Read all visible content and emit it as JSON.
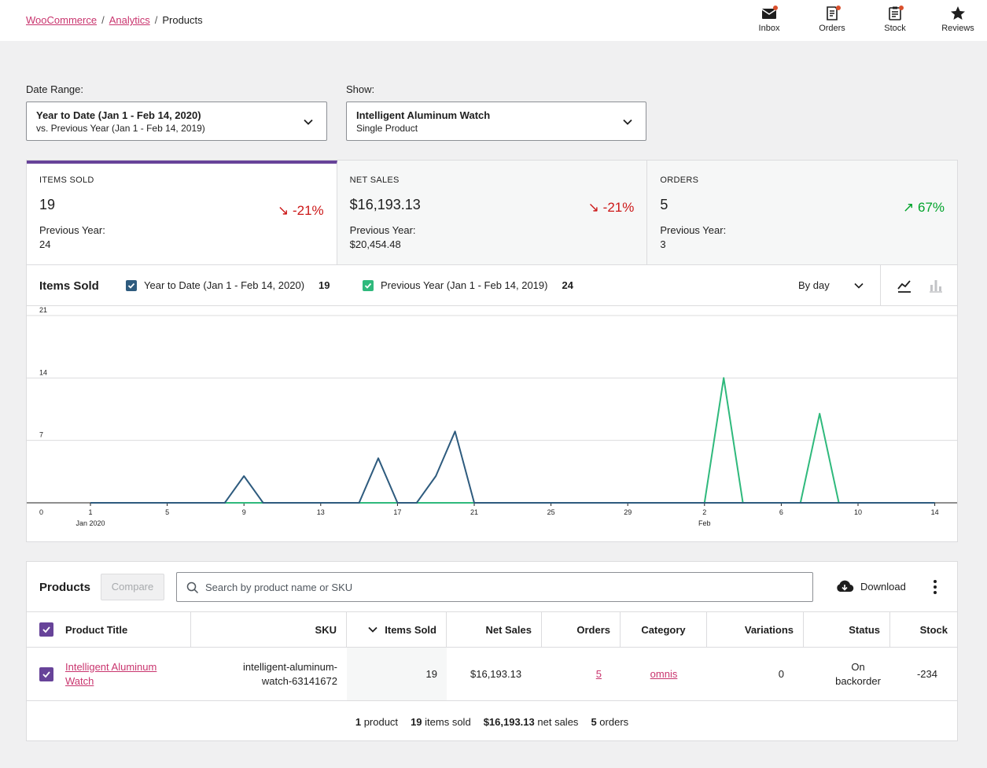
{
  "breadcrumb": {
    "items": [
      "WooCommerce",
      "Analytics"
    ],
    "current": "Products"
  },
  "activity": [
    {
      "label": "Inbox",
      "icon": "inbox-icon",
      "unread": true
    },
    {
      "label": "Orders",
      "icon": "orders-icon",
      "unread": true
    },
    {
      "label": "Stock",
      "icon": "stock-icon",
      "unread": true
    },
    {
      "label": "Reviews",
      "icon": "star-icon",
      "unread": false
    }
  ],
  "filters": {
    "date_range": {
      "label": "Date Range:",
      "primary": "Year to Date (Jan 1 - Feb 14, 2020)",
      "secondary": "vs. Previous Year (Jan 1 - Feb 14, 2019)"
    },
    "show": {
      "label": "Show:",
      "primary": "Intelligent Aluminum Watch",
      "secondary": "Single Product"
    }
  },
  "summary": [
    {
      "label": "ITEMS SOLD",
      "value": "19",
      "delta": "-21%",
      "direction": "down",
      "prev_label": "Previous Year:",
      "prev_value": "24"
    },
    {
      "label": "NET SALES",
      "value": "$16,193.13",
      "delta": "-21%",
      "direction": "down",
      "prev_label": "Previous Year:",
      "prev_value": "$20,454.48"
    },
    {
      "label": "ORDERS",
      "value": "5",
      "delta": "67%",
      "direction": "up",
      "prev_label": "Previous Year:",
      "prev_value": "3"
    }
  ],
  "chart": {
    "title": "Items Sold",
    "legend": [
      {
        "label": "Year to Date (Jan 1 - Feb 14, 2020)",
        "total": "19",
        "color": "#2e5b7e"
      },
      {
        "label": "Previous Year (Jan 1 - Feb 14, 2019)",
        "total": "24",
        "color": "#2fb97c"
      }
    ],
    "interval": "By day"
  },
  "chart_data": {
    "type": "line",
    "title": "Items Sold",
    "ylim": [
      0,
      21
    ],
    "yticks": [
      "0",
      "7",
      "14",
      "21"
    ],
    "xticks": [
      {
        "day": 1,
        "label": "1",
        "sub": "Jan 2020"
      },
      {
        "day": 5,
        "label": "5"
      },
      {
        "day": 9,
        "label": "9"
      },
      {
        "day": 13,
        "label": "13"
      },
      {
        "day": 17,
        "label": "17"
      },
      {
        "day": 21,
        "label": "21"
      },
      {
        "day": 25,
        "label": "25"
      },
      {
        "day": 29,
        "label": "29"
      },
      {
        "day": 33,
        "label": "2",
        "sub": "Feb"
      },
      {
        "day": 37,
        "label": "6"
      },
      {
        "day": 41,
        "label": "10"
      },
      {
        "day": 45,
        "label": "14"
      }
    ],
    "x": [
      1,
      2,
      3,
      4,
      5,
      6,
      7,
      8,
      9,
      10,
      11,
      12,
      13,
      14,
      15,
      16,
      17,
      18,
      19,
      20,
      21,
      22,
      23,
      24,
      25,
      26,
      27,
      28,
      29,
      30,
      31,
      32,
      33,
      34,
      35,
      36,
      37,
      38,
      39,
      40,
      41,
      42,
      43,
      44,
      45
    ],
    "series": [
      {
        "name": "Year to Date (Jan 1 - Feb 14, 2020)",
        "color": "#2e5b7e",
        "values": [
          0,
          0,
          0,
          0,
          0,
          0,
          0,
          0,
          3,
          0,
          0,
          0,
          0,
          0,
          0,
          5,
          0,
          0,
          3,
          8,
          0,
          0,
          0,
          0,
          0,
          0,
          0,
          0,
          0,
          0,
          0,
          0,
          0,
          0,
          0,
          0,
          0,
          0,
          0,
          0,
          0,
          0,
          0,
          0,
          0
        ]
      },
      {
        "name": "Previous Year (Jan 1 - Feb 14, 2019)",
        "color": "#2fb97c",
        "values": [
          0,
          0,
          0,
          0,
          0,
          0,
          0,
          0,
          0,
          0,
          0,
          0,
          0,
          0,
          0,
          0,
          0,
          0,
          0,
          0,
          0,
          0,
          0,
          0,
          0,
          0,
          0,
          0,
          0,
          0,
          0,
          0,
          0,
          14,
          0,
          0,
          0,
          0,
          10,
          0,
          0,
          0,
          0,
          0,
          0
        ]
      }
    ]
  },
  "products": {
    "title": "Products",
    "compare_label": "Compare",
    "search_placeholder": "Search by product name or SKU",
    "download_label": "Download",
    "columns": [
      "Product Title",
      "SKU",
      "Items Sold",
      "Net Sales",
      "Orders",
      "Category",
      "Variations",
      "Status",
      "Stock"
    ],
    "rows": [
      {
        "title": "Intelligent Aluminum Watch",
        "sku": "intelligent-aluminum-watch-63141672",
        "items_sold": "19",
        "net_sales": "$16,193.13",
        "orders": "5",
        "category": "omnis",
        "variations": "0",
        "status": "On backorder",
        "stock": "-234"
      }
    ],
    "footer": {
      "products_n": "1",
      "products_t": "product",
      "items_n": "19",
      "items_t": "items sold",
      "sales_n": "$16,193.13",
      "sales_t": "net sales",
      "orders_n": "5",
      "orders_t": "orders"
    }
  }
}
